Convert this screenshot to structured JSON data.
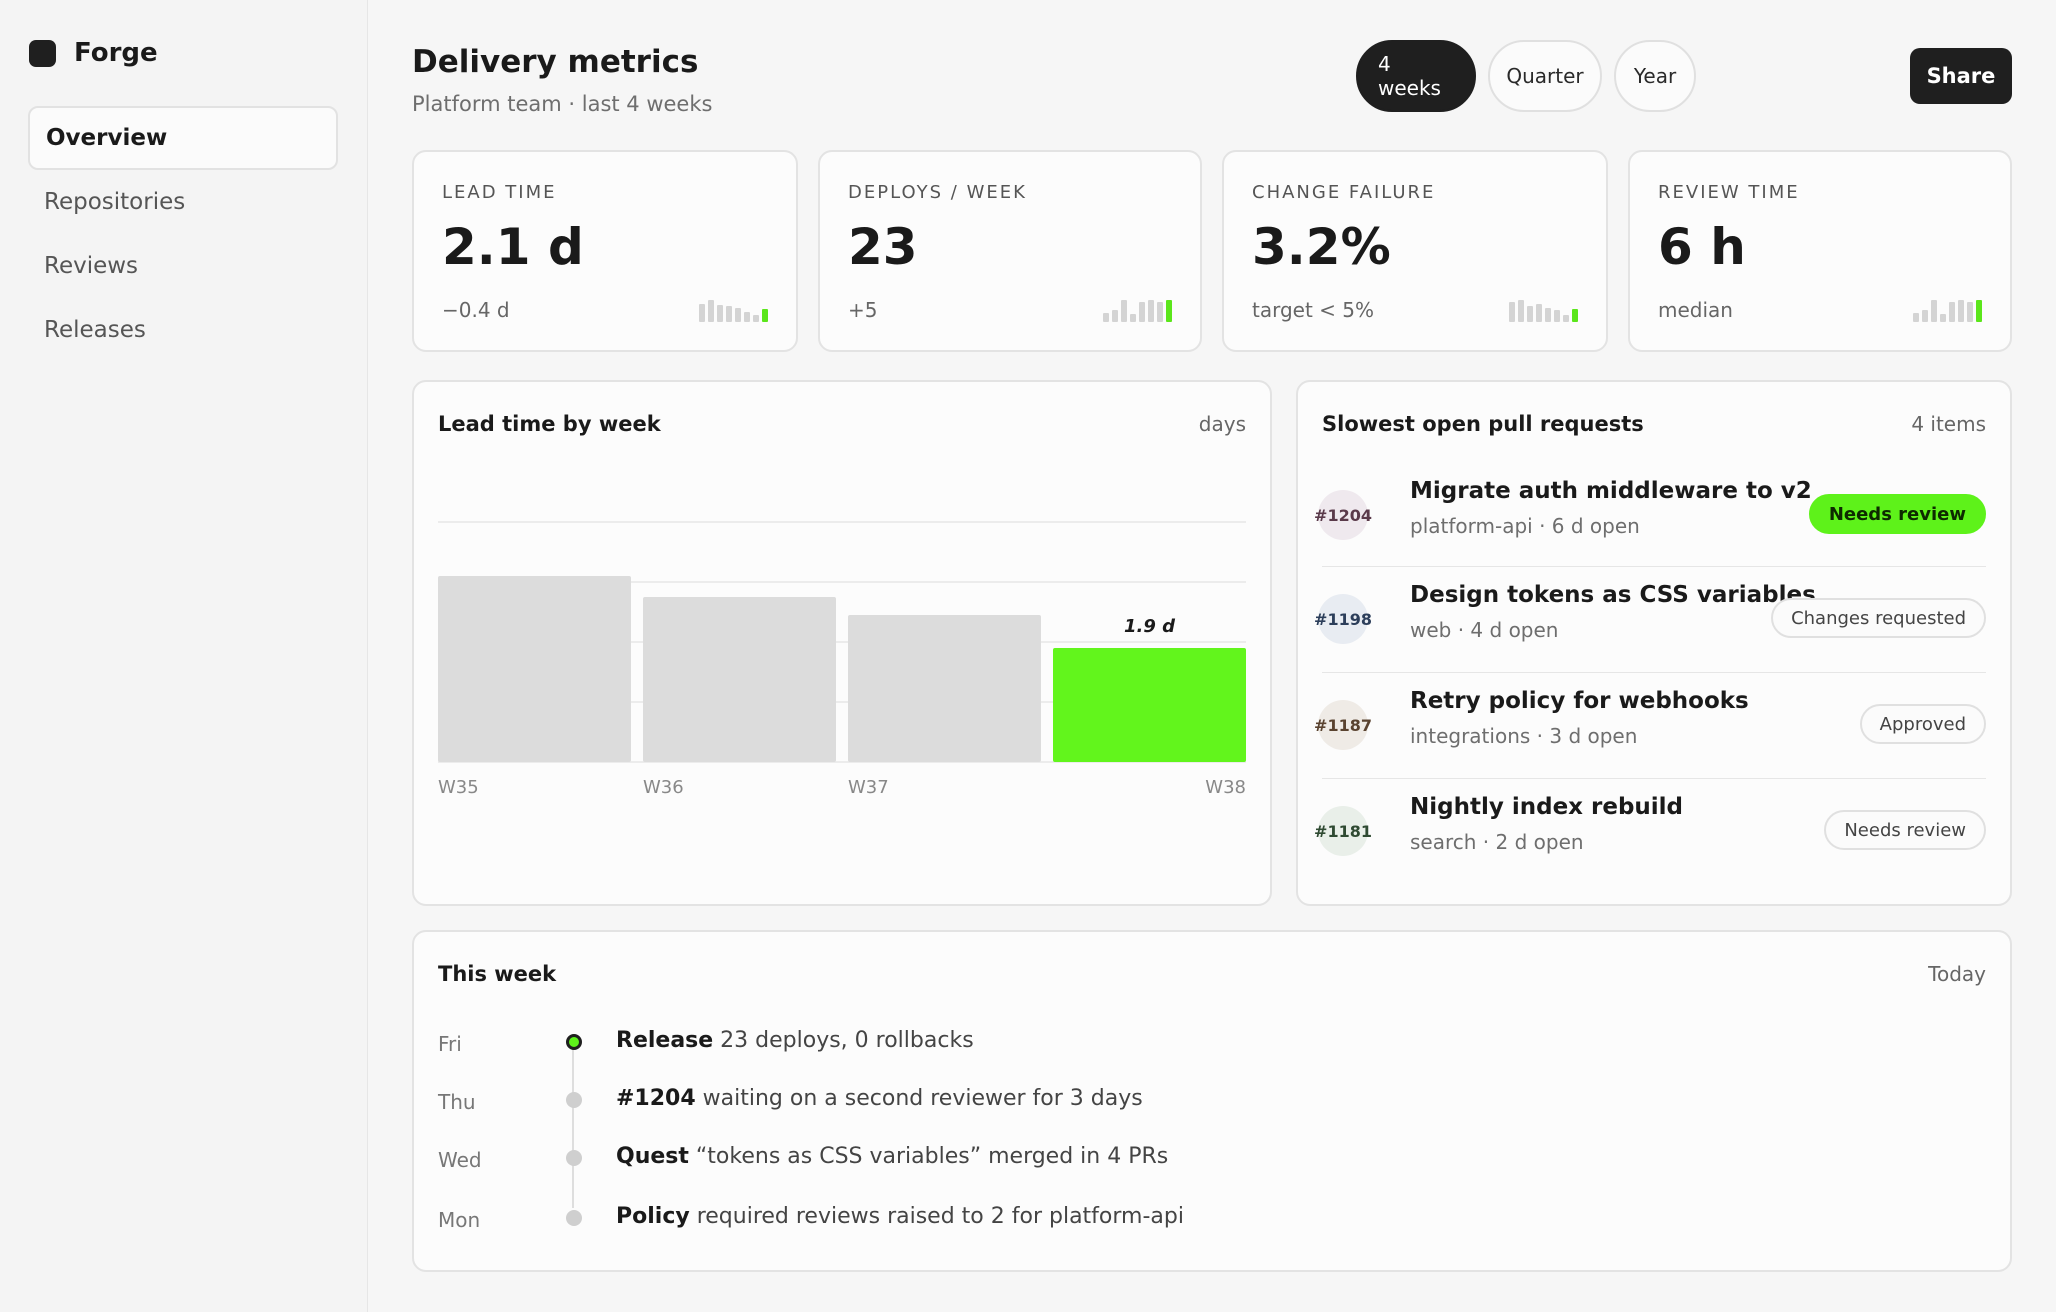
{
  "app": {
    "name": "Forge"
  },
  "sidebar": {
    "items": [
      {
        "label": "Overview",
        "active": true
      },
      {
        "label": "Repositories"
      },
      {
        "label": "Reviews"
      },
      {
        "label": "Releases"
      }
    ]
  },
  "header": {
    "title": "Delivery metrics",
    "subtitle": "Platform team · last 4 weeks",
    "ranges": [
      {
        "label": "4 weeks",
        "active": true
      },
      {
        "label": "Quarter"
      },
      {
        "label": "Year"
      }
    ],
    "share_label": "Share"
  },
  "stats": [
    {
      "label": "LEAD TIME",
      "value": "2.1 d",
      "sub": "−0.4 d",
      "spark": [
        0.7,
        0.85,
        0.65,
        0.6,
        0.55,
        0.4,
        0.25,
        0.5
      ]
    },
    {
      "label": "DEPLOYS / WEEK",
      "value": "23",
      "sub": "+5",
      "spark": [
        0.35,
        0.45,
        0.85,
        0.3,
        0.75,
        0.85,
        0.75,
        0.85
      ]
    },
    {
      "label": "CHANGE FAILURE",
      "value": "3.2%",
      "sub": "target < 5%",
      "spark": [
        0.75,
        0.85,
        0.6,
        0.7,
        0.55,
        0.45,
        0.25,
        0.5
      ]
    },
    {
      "label": "REVIEW TIME",
      "value": "6 h",
      "sub": "median",
      "spark": [
        0.35,
        0.45,
        0.85,
        0.3,
        0.75,
        0.85,
        0.75,
        0.85
      ]
    }
  ],
  "lead_chart": {
    "title": "Lead time by week",
    "unit_label": "days",
    "highlight_label": "1.9 d"
  },
  "chart_data": {
    "type": "bar",
    "categories": [
      "W35",
      "W36",
      "W37",
      "W38"
    ],
    "values": [
      3.1,
      2.75,
      2.45,
      1.9
    ],
    "ylim": [
      0,
      4
    ],
    "grid": true,
    "highlight_index": 3,
    "colors": {
      "bar": "#dcdcdc",
      "highlight": "#62f51c"
    }
  },
  "prs": {
    "title": "Slowest open pull requests",
    "count_label": "4 items",
    "items": [
      {
        "number": "#1204",
        "title": "Migrate auth middleware to v2",
        "meta": "platform-api · 6 d open",
        "status": "Needs review",
        "highlight": true,
        "avatar_bg": "#efe9ee",
        "avatar_fg": "#5a3a4a"
      },
      {
        "number": "#1198",
        "title": "Design tokens as CSS variables",
        "meta": "web · 4 d open",
        "status": "Changes requested",
        "highlight": false,
        "avatar_bg": "#e8ecf2",
        "avatar_fg": "#2c3e5a"
      },
      {
        "number": "#1187",
        "title": "Retry policy for webhooks",
        "meta": "integrations · 3 d open",
        "status": "Approved",
        "highlight": false,
        "avatar_bg": "#efebe6",
        "avatar_fg": "#5a4330"
      },
      {
        "number": "#1181",
        "title": "Nightly index rebuild",
        "meta": "search · 2 d open",
        "status": "Needs review",
        "highlight": false,
        "avatar_bg": "#e9efe9",
        "avatar_fg": "#2f4a32"
      }
    ]
  },
  "week": {
    "title": "This week",
    "meta": "Today",
    "events": [
      {
        "day": "Fri",
        "strong": "Release",
        "text": " 23 deploys, 0 rollbacks",
        "current": true
      },
      {
        "day": "Thu",
        "strong": "#1204",
        "text": " waiting on a second reviewer for 3 days",
        "current": false
      },
      {
        "day": "Wed",
        "strong": "Quest",
        "text": " “tokens as CSS variables” merged in 4 PRs",
        "current": false
      },
      {
        "day": "Mon",
        "strong": "Policy",
        "text": " required reviews raised to 2 for platform-api",
        "current": false
      }
    ]
  }
}
